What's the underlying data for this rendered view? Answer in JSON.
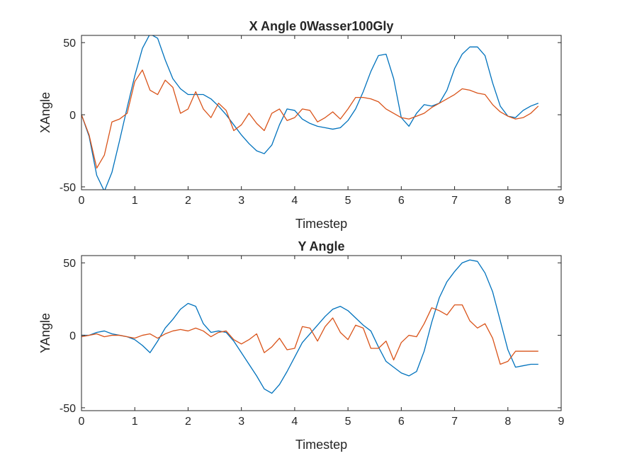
{
  "chart_data": [
    {
      "type": "line",
      "title": "X Angle 0Wasser100Gly",
      "xlabel": "Timestep",
      "ylabel": "XAngle",
      "xlim": [
        0,
        9
      ],
      "ylim": [
        -52,
        55
      ],
      "xticks": [
        0,
        1,
        2,
        3,
        4,
        5,
        6,
        7,
        8,
        9
      ],
      "yticks": [
        -50,
        0,
        50
      ],
      "grid": false,
      "legend": "none",
      "series": [
        {
          "color": "#0072BD",
          "x": [
            0,
            0.143,
            0.286,
            0.429,
            0.571,
            0.714,
            0.857,
            1.0,
            1.143,
            1.286,
            1.429,
            1.571,
            1.714,
            1.857,
            2.0,
            2.143,
            2.286,
            2.429,
            2.571,
            2.714,
            2.857,
            3.0,
            3.143,
            3.286,
            3.429,
            3.571,
            3.714,
            3.857,
            4.0,
            4.143,
            4.286,
            4.429,
            4.571,
            4.714,
            4.857,
            5.0,
            5.143,
            5.286,
            5.429,
            5.571,
            5.714,
            5.857,
            6.0,
            6.143,
            6.286,
            6.429,
            6.571,
            6.714,
            6.857,
            7.0,
            7.143,
            7.286,
            7.429,
            7.571,
            7.714,
            7.857,
            8.0,
            8.143,
            8.286,
            8.429,
            8.571
          ],
          "y": [
            0,
            -15,
            -42,
            -53,
            -40,
            -18,
            5,
            27,
            46,
            56,
            53,
            38,
            25,
            18,
            14,
            14,
            14,
            11,
            6,
            0,
            -7,
            -14,
            -20,
            -25,
            -27,
            -21,
            -7,
            4,
            3,
            -3,
            -6,
            -8,
            -9,
            -10,
            -9,
            -4,
            4,
            16,
            30,
            41,
            42,
            25,
            -2,
            -8,
            1,
            7,
            6,
            8,
            17,
            32,
            42,
            47,
            47,
            41,
            22,
            6,
            -1,
            -2,
            3,
            6,
            8
          ]
        },
        {
          "color": "#D95319",
          "x": [
            0,
            0.143,
            0.286,
            0.429,
            0.571,
            0.714,
            0.857,
            1.0,
            1.143,
            1.286,
            1.429,
            1.571,
            1.714,
            1.857,
            2.0,
            2.143,
            2.286,
            2.429,
            2.571,
            2.714,
            2.857,
            3.0,
            3.143,
            3.286,
            3.429,
            3.571,
            3.714,
            3.857,
            4.0,
            4.143,
            4.286,
            4.429,
            4.571,
            4.714,
            4.857,
            5.0,
            5.143,
            5.286,
            5.429,
            5.571,
            5.714,
            5.857,
            6.0,
            6.143,
            6.286,
            6.429,
            6.571,
            6.714,
            6.857,
            7.0,
            7.143,
            7.286,
            7.429,
            7.571,
            7.714,
            7.857,
            8.0,
            8.143,
            8.286,
            8.429,
            8.571
          ],
          "y": [
            0,
            -14,
            -37,
            -28,
            -5,
            -3,
            1,
            23,
            31,
            17,
            14,
            24,
            19,
            1,
            4,
            16,
            4,
            -2,
            8,
            3,
            -11,
            -7,
            1,
            -6,
            -11,
            1,
            4,
            -4,
            -2,
            4,
            3,
            -5,
            -2,
            2,
            -3,
            4,
            12,
            12,
            11,
            9,
            4,
            1,
            -2,
            -3,
            -1,
            1,
            5,
            8,
            11,
            14,
            18,
            17,
            15,
            14,
            7,
            2,
            -1,
            -3,
            -2,
            1,
            6
          ]
        }
      ]
    },
    {
      "type": "line",
      "title": "Y Angle",
      "xlabel": "Timestep",
      "ylabel": "YAngle",
      "xlim": [
        0,
        9
      ],
      "ylim": [
        -52,
        55
      ],
      "xticks": [
        0,
        1,
        2,
        3,
        4,
        5,
        6,
        7,
        8,
        9
      ],
      "yticks": [
        -50,
        0,
        50
      ],
      "grid": false,
      "legend": "none",
      "series": [
        {
          "color": "#0072BD",
          "x": [
            0,
            0.143,
            0.286,
            0.429,
            0.571,
            0.714,
            0.857,
            1.0,
            1.143,
            1.286,
            1.429,
            1.571,
            1.714,
            1.857,
            2.0,
            2.143,
            2.286,
            2.429,
            2.571,
            2.714,
            2.857,
            3.0,
            3.143,
            3.286,
            3.429,
            3.571,
            3.714,
            3.857,
            4.0,
            4.143,
            4.286,
            4.429,
            4.571,
            4.714,
            4.857,
            5.0,
            5.143,
            5.286,
            5.429,
            5.571,
            5.714,
            5.857,
            6.0,
            6.143,
            6.286,
            6.429,
            6.571,
            6.714,
            6.857,
            7.0,
            7.143,
            7.286,
            7.429,
            7.571,
            7.714,
            7.857,
            8.0,
            8.143,
            8.286,
            8.429,
            8.571
          ],
          "y": [
            0,
            0,
            2,
            3,
            1,
            0,
            -1,
            -3,
            -7,
            -12,
            -4,
            5,
            11,
            18,
            22,
            20,
            8,
            2,
            3,
            2,
            -4,
            -12,
            -20,
            -28,
            -37,
            -40,
            -34,
            -25,
            -15,
            -5,
            1,
            7,
            13,
            18,
            20,
            17,
            12,
            7,
            3,
            -8,
            -18,
            -22,
            -26,
            -28,
            -25,
            -11,
            9,
            26,
            37,
            44,
            50,
            52,
            51,
            43,
            30,
            10,
            -10,
            -22,
            -21,
            -20,
            -20
          ]
        },
        {
          "color": "#D95319",
          "x": [
            0,
            0.143,
            0.286,
            0.429,
            0.571,
            0.714,
            0.857,
            1.0,
            1.143,
            1.286,
            1.429,
            1.571,
            1.714,
            1.857,
            2.0,
            2.143,
            2.286,
            2.429,
            2.571,
            2.714,
            2.857,
            3.0,
            3.143,
            3.286,
            3.429,
            3.571,
            3.714,
            3.857,
            4.0,
            4.143,
            4.286,
            4.429,
            4.571,
            4.714,
            4.857,
            5.0,
            5.143,
            5.286,
            5.429,
            5.571,
            5.714,
            5.857,
            6.0,
            6.143,
            6.286,
            6.429,
            6.571,
            6.714,
            6.857,
            7.0,
            7.143,
            7.286,
            7.429,
            7.571,
            7.714,
            7.857,
            8.0,
            8.143,
            8.286,
            8.429,
            8.571
          ],
          "y": [
            -1,
            0,
            1,
            -1,
            0,
            0,
            -1,
            -2,
            0,
            1,
            -2,
            1,
            3,
            4,
            3,
            5,
            3,
            -1,
            2,
            3,
            -3,
            -6,
            -3,
            1,
            -12,
            -8,
            -2,
            -10,
            -9,
            6,
            5,
            -4,
            6,
            12,
            2,
            -3,
            7,
            5,
            -9,
            -9,
            -4,
            -17,
            -5,
            0,
            -1,
            8,
            19,
            17,
            14,
            21,
            21,
            10,
            5,
            8,
            -2,
            -20,
            -18,
            -11,
            -11,
            -11,
            -11
          ]
        }
      ]
    }
  ]
}
